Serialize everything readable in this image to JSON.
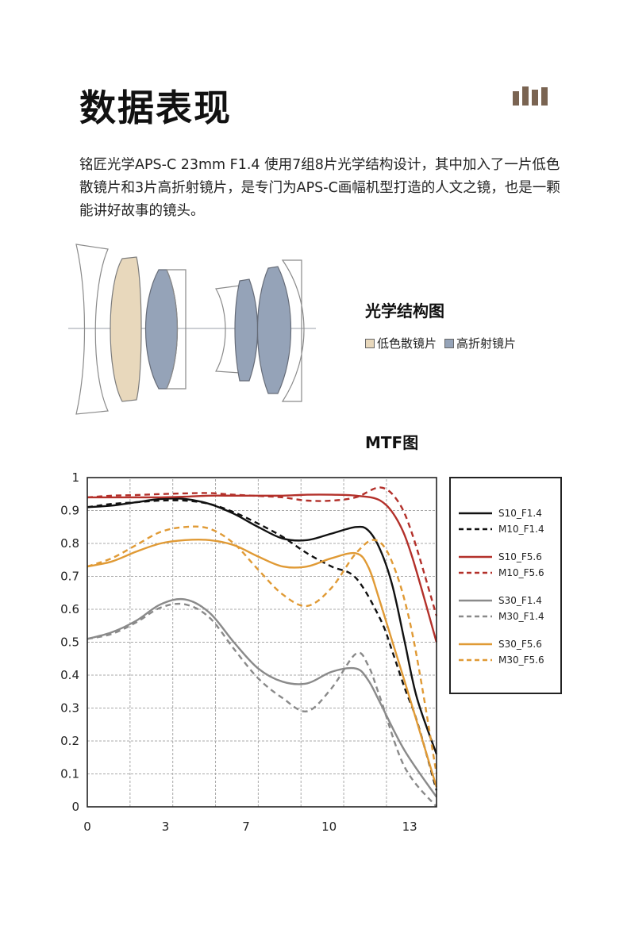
{
  "header": {
    "title": "数据表现",
    "logo_icon": "bar-logo-icon",
    "logo_color": "#7a6452"
  },
  "intro": {
    "text": "铭匠光学APS-C 23mm F1.4 使用7组8片光学结构设计，其中加入了一片低色散镜片和3片高折射镜片，是专门为APS-C画幅机型打造的人文之镜，也是一颗能讲好故事的镜头。"
  },
  "optical_structure": {
    "title": "光学结构图",
    "legend": [
      {
        "label": "低色散镜片",
        "color": "#e8d8bc"
      },
      {
        "label": "高折射镜片",
        "color": "#95a3b8"
      }
    ]
  },
  "mtf": {
    "title": "MTF图"
  },
  "chart_data": {
    "type": "line",
    "title": "MTF图",
    "xlabel": "",
    "ylabel": "",
    "xlim": [
      0,
      14.3
    ],
    "ylim": [
      0,
      1
    ],
    "x_ticks": [
      "0",
      "3",
      "7",
      "10",
      "13"
    ],
    "y_ticks": [
      "0",
      "0.1",
      "0.2",
      "0.3",
      "0.4",
      "0.5",
      "0.6",
      "0.7",
      "0.8",
      "0.9",
      "1"
    ],
    "grid": true,
    "legend_position": "right",
    "series": [
      {
        "name": "S10_F1.4",
        "color": "#111111",
        "dash": false,
        "points": [
          [
            0,
            0.91
          ],
          [
            1,
            0.915
          ],
          [
            2,
            0.925
          ],
          [
            3,
            0.935
          ],
          [
            4,
            0.935
          ],
          [
            5,
            0.92
          ],
          [
            6,
            0.89
          ],
          [
            7,
            0.85
          ],
          [
            8,
            0.815
          ],
          [
            9,
            0.81
          ],
          [
            10,
            0.83
          ],
          [
            11,
            0.85
          ],
          [
            11.5,
            0.84
          ],
          [
            12,
            0.78
          ],
          [
            12.5,
            0.67
          ],
          [
            13,
            0.5
          ],
          [
            13.5,
            0.33
          ],
          [
            14.3,
            0.16
          ]
        ]
      },
      {
        "name": "M10_F1.4",
        "color": "#111111",
        "dash": true,
        "points": [
          [
            0,
            0.91
          ],
          [
            1,
            0.92
          ],
          [
            2,
            0.925
          ],
          [
            3,
            0.93
          ],
          [
            4,
            0.93
          ],
          [
            5,
            0.92
          ],
          [
            6,
            0.895
          ],
          [
            7,
            0.86
          ],
          [
            8,
            0.82
          ],
          [
            9,
            0.77
          ],
          [
            10,
            0.73
          ],
          [
            11,
            0.695
          ],
          [
            12,
            0.57
          ],
          [
            12.5,
            0.47
          ],
          [
            13,
            0.36
          ],
          [
            13.5,
            0.26
          ],
          [
            14.3,
            0.05
          ]
        ]
      },
      {
        "name": "S10_F5.6",
        "color": "#b3302a",
        "dash": false,
        "points": [
          [
            0,
            0.94
          ],
          [
            1,
            0.94
          ],
          [
            2,
            0.94
          ],
          [
            3,
            0.94
          ],
          [
            4,
            0.942
          ],
          [
            5,
            0.945
          ],
          [
            6,
            0.945
          ],
          [
            7,
            0.945
          ],
          [
            8,
            0.945
          ],
          [
            9,
            0.948
          ],
          [
            10,
            0.948
          ],
          [
            11,
            0.945
          ],
          [
            12,
            0.93
          ],
          [
            12.7,
            0.87
          ],
          [
            13.3,
            0.76
          ],
          [
            14.3,
            0.5
          ]
        ]
      },
      {
        "name": "M10_F5.6",
        "color": "#b3302a",
        "dash": true,
        "points": [
          [
            0,
            0.94
          ],
          [
            1,
            0.945
          ],
          [
            2,
            0.947
          ],
          [
            3,
            0.95
          ],
          [
            4,
            0.952
          ],
          [
            5,
            0.953
          ],
          [
            6,
            0.948
          ],
          [
            7,
            0.944
          ],
          [
            8,
            0.94
          ],
          [
            9,
            0.93
          ],
          [
            10,
            0.93
          ],
          [
            11,
            0.94
          ],
          [
            12,
            0.97
          ],
          [
            12.7,
            0.93
          ],
          [
            13.3,
            0.83
          ],
          [
            14.3,
            0.58
          ]
        ]
      },
      {
        "name": "S30_F1.4",
        "color": "#8a8a8a",
        "dash": false,
        "points": [
          [
            0,
            0.51
          ],
          [
            1,
            0.53
          ],
          [
            2,
            0.565
          ],
          [
            3,
            0.615
          ],
          [
            4,
            0.63
          ],
          [
            5,
            0.59
          ],
          [
            6,
            0.5
          ],
          [
            7,
            0.42
          ],
          [
            8,
            0.38
          ],
          [
            9,
            0.375
          ],
          [
            10,
            0.41
          ],
          [
            11,
            0.42
          ],
          [
            11.5,
            0.385
          ],
          [
            12,
            0.315
          ],
          [
            13,
            0.17
          ],
          [
            14.3,
            0.03
          ]
        ]
      },
      {
        "name": "M30_F1.4",
        "color": "#8a8a8a",
        "dash": true,
        "points": [
          [
            0,
            0.51
          ],
          [
            1,
            0.525
          ],
          [
            2,
            0.56
          ],
          [
            3,
            0.605
          ],
          [
            4,
            0.615
          ],
          [
            5,
            0.575
          ],
          [
            6,
            0.48
          ],
          [
            7,
            0.39
          ],
          [
            8,
            0.33
          ],
          [
            9,
            0.29
          ],
          [
            10,
            0.36
          ],
          [
            11,
            0.465
          ],
          [
            11.5,
            0.43
          ],
          [
            12,
            0.33
          ],
          [
            13,
            0.12
          ],
          [
            14.3,
            0.0
          ]
        ]
      },
      {
        "name": "S30_F5.6",
        "color": "#e09a35",
        "dash": false,
        "points": [
          [
            0,
            0.73
          ],
          [
            1,
            0.745
          ],
          [
            2,
            0.775
          ],
          [
            3,
            0.8
          ],
          [
            4,
            0.81
          ],
          [
            5,
            0.81
          ],
          [
            6,
            0.795
          ],
          [
            7,
            0.76
          ],
          [
            8,
            0.73
          ],
          [
            9,
            0.73
          ],
          [
            10,
            0.755
          ],
          [
            11,
            0.77
          ],
          [
            11.5,
            0.73
          ],
          [
            12,
            0.62
          ],
          [
            13,
            0.38
          ],
          [
            14.3,
            0.06
          ]
        ]
      },
      {
        "name": "M30_F5.6",
        "color": "#e09a35",
        "dash": true,
        "points": [
          [
            0,
            0.73
          ],
          [
            1,
            0.755
          ],
          [
            2,
            0.795
          ],
          [
            3,
            0.835
          ],
          [
            4,
            0.85
          ],
          [
            5,
            0.845
          ],
          [
            6,
            0.8
          ],
          [
            7,
            0.72
          ],
          [
            8,
            0.645
          ],
          [
            9,
            0.61
          ],
          [
            10,
            0.665
          ],
          [
            11,
            0.77
          ],
          [
            11.8,
            0.81
          ],
          [
            12.5,
            0.74
          ],
          [
            13.3,
            0.53
          ],
          [
            14.3,
            0.1
          ]
        ]
      }
    ]
  }
}
